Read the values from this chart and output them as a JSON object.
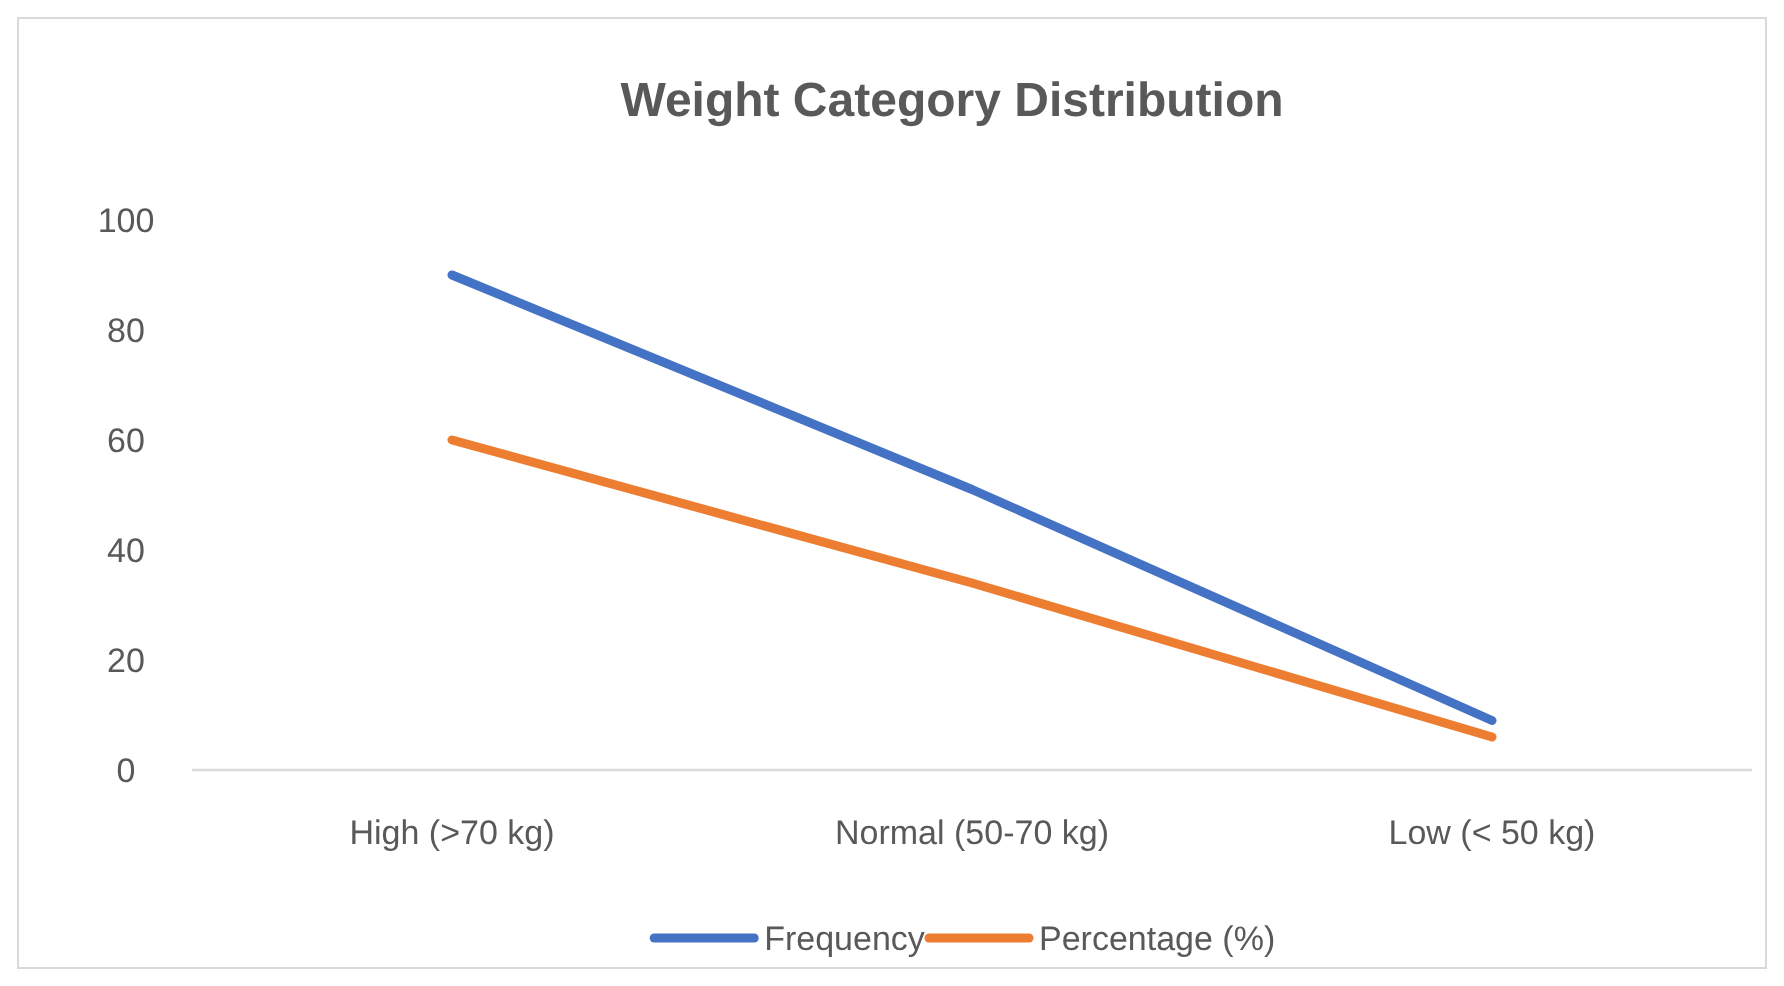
{
  "chart_data": {
    "type": "line",
    "title": "Weight Category Distribution",
    "categories": [
      "High (>70 kg)",
      "Normal (50-70 kg)",
      "Low (< 50 kg)"
    ],
    "series": [
      {
        "name": "Frequency",
        "color": "#4472c4",
        "values": [
          90,
          51,
          9
        ]
      },
      {
        "name": "Percentage (%)",
        "color": "#ed7d31",
        "values": [
          60,
          34,
          6
        ]
      }
    ],
    "ylim": [
      0,
      100
    ],
    "yticks": [
      0,
      20,
      40,
      60,
      80,
      100
    ],
    "grid": false,
    "legend": "bottom",
    "marker": "none",
    "line_style": "solid"
  }
}
